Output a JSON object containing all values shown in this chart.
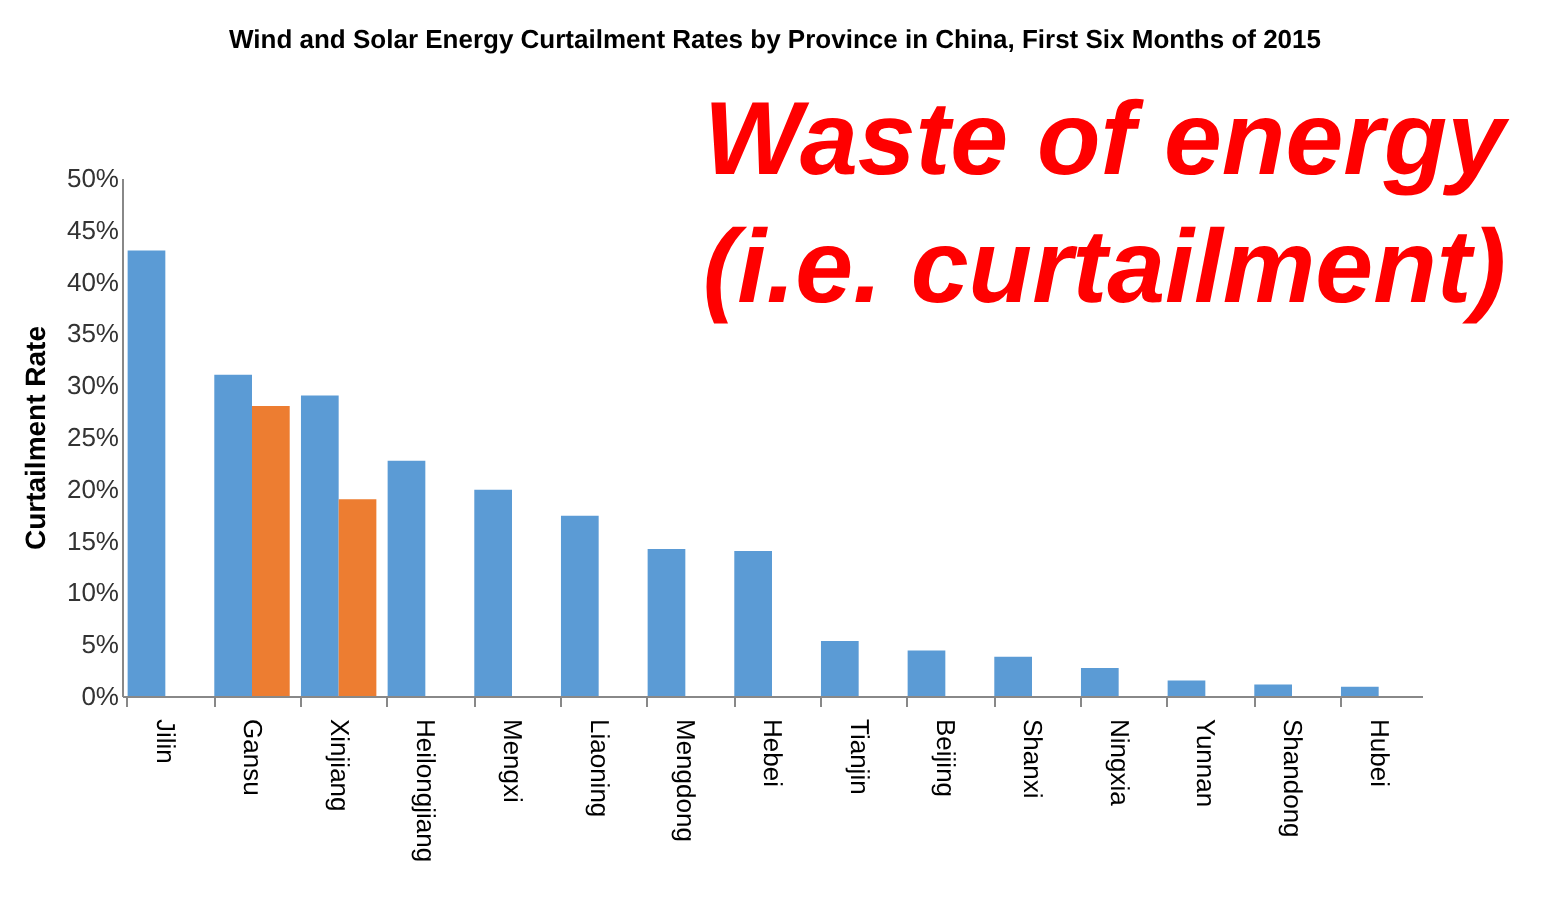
{
  "chart_data": {
    "type": "bar",
    "title": "Wind and Solar Energy Curtailment Rates by Province in China, First Six Months of 2015",
    "ylabel": "Curtailment Rate",
    "annotations": [
      "Waste of energy",
      "(i.e. curtailment)"
    ],
    "categories": [
      "Jilin",
      "Gansu",
      "Xinjiang",
      "Heilongjiang",
      "Mengxi",
      "Liaoning",
      "Mengdong",
      "Hebei",
      "Tianjin",
      "Beijing",
      "Shanxi",
      "Ningxia",
      "Yunnan",
      "Shandong",
      "Hubei"
    ],
    "series": [
      {
        "color": "#5b9bd5",
        "values": [
          43,
          31,
          29,
          22.7,
          19.9,
          17.4,
          14.2,
          14,
          5.3,
          4.4,
          3.8,
          2.7,
          1.5,
          1.1,
          0.9
        ]
      },
      {
        "color": "#ed7d31",
        "values": [
          null,
          28,
          19,
          null,
          null,
          null,
          null,
          null,
          null,
          null,
          null,
          null,
          null,
          null,
          null
        ]
      }
    ],
    "ylim": [
      0,
      50
    ],
    "yticks": [
      {
        "value": 0,
        "label": "0%"
      },
      {
        "value": 5,
        "label": "5%"
      },
      {
        "value": 10,
        "label": "10%"
      },
      {
        "value": 15,
        "label": "15%"
      },
      {
        "value": 20,
        "label": "20%"
      },
      {
        "value": 25,
        "label": "25%"
      },
      {
        "value": 30,
        "label": "30%"
      },
      {
        "value": 35,
        "label": "35%"
      },
      {
        "value": 40,
        "label": "40%"
      },
      {
        "value": 45,
        "label": "45%"
      },
      {
        "value": 50,
        "label": "50%"
      }
    ],
    "grid": false,
    "legend": false
  }
}
